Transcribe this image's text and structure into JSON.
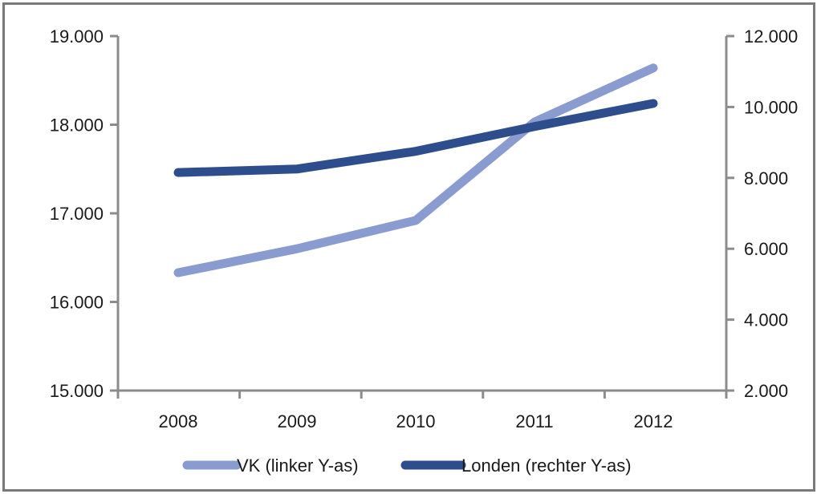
{
  "chart_data": {
    "type": "line",
    "categories": [
      "2008",
      "2009",
      "2010",
      "2011",
      "2012"
    ],
    "left_axis": {
      "ylim": [
        15000,
        19000
      ],
      "ticks": [
        15000,
        16000,
        17000,
        18000,
        19000
      ],
      "tick_labels": [
        "15.000",
        "16.000",
        "17.000",
        "18.000",
        "19.000"
      ]
    },
    "right_axis": {
      "ylim": [
        2000,
        12000
      ],
      "ticks": [
        2000,
        4000,
        6000,
        8000,
        10000,
        12000
      ],
      "tick_labels": [
        "2.000",
        "4.000",
        "6.000",
        "8.000",
        "10.000",
        "12.000"
      ]
    },
    "series": [
      {
        "name": "VK (linker Y-as)",
        "axis": "left",
        "color": "#8a9ccf",
        "values": [
          16330,
          16600,
          16920,
          18030,
          18640
        ]
      },
      {
        "name": "Londen (rechter Y-as)",
        "axis": "right",
        "color": "#2e4d8c",
        "values": [
          8150,
          8250,
          8750,
          9450,
          10100
        ]
      }
    ],
    "legend_position": "bottom",
    "grid": false
  }
}
